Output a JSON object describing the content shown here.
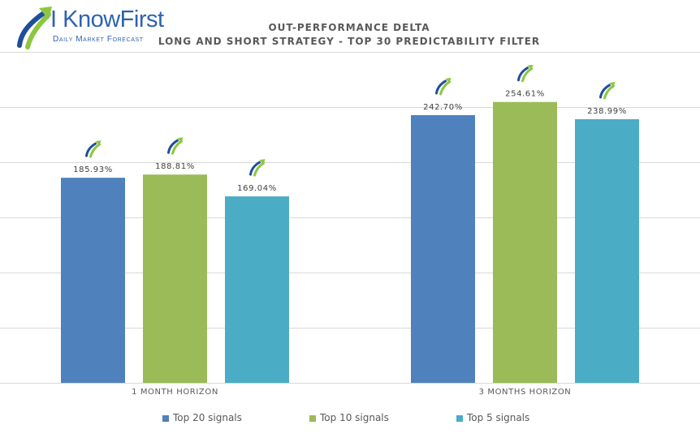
{
  "logo": {
    "name": "I KnowFirst",
    "tagline": "Daily Market Forecast"
  },
  "chart_data": {
    "type": "bar",
    "title": "OUT-PERFORMANCE DELTA",
    "subtitle": "LONG AND SHORT STRATEGY - TOP 30 PREDICTABILITY FILTER",
    "categories": [
      "1 MONTH HORIZON",
      "3 MONTHS HORIZON"
    ],
    "series": [
      {
        "name": "Top 20 signals",
        "color": "#4f81bd",
        "values": [
          185.93,
          242.7
        ],
        "labels": [
          "185.93%",
          "242.70%"
        ]
      },
      {
        "name": "Top 10 signals",
        "color": "#9bbb59",
        "values": [
          188.81,
          254.61
        ],
        "labels": [
          "188.81%",
          "254.61%"
        ]
      },
      {
        "name": "Top 5 signals",
        "color": "#4bacc6",
        "values": [
          169.04,
          238.99
        ],
        "labels": [
          "169.04%",
          "238.99%"
        ]
      }
    ],
    "ylim": [
      0,
      300
    ],
    "grid": true,
    "legend": "bottom",
    "xlabel": "",
    "ylabel": ""
  }
}
